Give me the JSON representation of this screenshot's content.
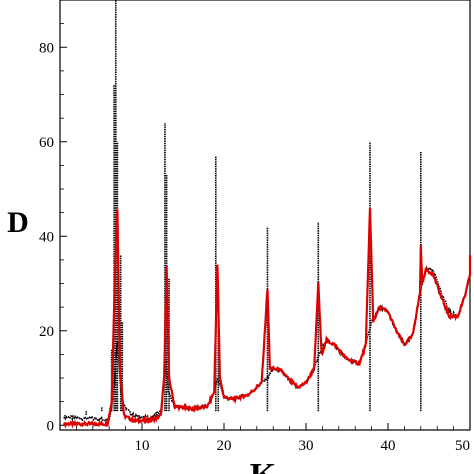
{
  "chart_data": {
    "type": "line",
    "title": "",
    "xlabel": "K",
    "ylabel": "D",
    "xlim": [
      0,
      50
    ],
    "ylim": [
      -1,
      90
    ],
    "xticks": [
      10,
      20,
      30,
      40,
      50
    ],
    "yticks": [
      0,
      20,
      40,
      60,
      80
    ],
    "grid": false,
    "legend": "none",
    "series": [
      {
        "color": "#000000",
        "style": "dotted",
        "baseline": [
          [
            0.5,
            1.8
          ],
          [
            2,
            1.5
          ],
          [
            4,
            1.4
          ],
          [
            6,
            1.2
          ],
          [
            6.5,
            6
          ],
          [
            7,
            18
          ],
          [
            7.4,
            8
          ],
          [
            7.8,
            4
          ],
          [
            9,
            2
          ],
          [
            11,
            1.5
          ],
          [
            12.3,
            3
          ],
          [
            12.6,
            8
          ],
          [
            13,
            14
          ],
          [
            13.2,
            7
          ],
          [
            14,
            4
          ],
          [
            16,
            3.5
          ],
          [
            18,
            4
          ],
          [
            18.8,
            7
          ],
          [
            19.2,
            10
          ],
          [
            20,
            6
          ],
          [
            21,
            5.5
          ],
          [
            23,
            6.5
          ],
          [
            24.6,
            9
          ],
          [
            25.3,
            10
          ],
          [
            26,
            12
          ],
          [
            27,
            11.5
          ],
          [
            28,
            9.5
          ],
          [
            29,
            8
          ],
          [
            30,
            9
          ],
          [
            31,
            12
          ],
          [
            31.6,
            15
          ],
          [
            32.5,
            18
          ],
          [
            33.5,
            17
          ],
          [
            35,
            14
          ],
          [
            36.5,
            13
          ],
          [
            37.3,
            17
          ],
          [
            38,
            22
          ],
          [
            39,
            25
          ],
          [
            40,
            24
          ],
          [
            41,
            20
          ],
          [
            42,
            17
          ],
          [
            43,
            19
          ],
          [
            43.9,
            28
          ],
          [
            44.6,
            33
          ],
          [
            45.5,
            33
          ],
          [
            46.5,
            28
          ],
          [
            47.5,
            24
          ],
          [
            48.5,
            23
          ],
          [
            49.5,
            28
          ],
          [
            50.5,
            36
          ]
        ],
        "spikes": [
          [
            2.3,
            3
          ],
          [
            3.2,
            2.2
          ],
          [
            5.1,
            3.8
          ],
          [
            6.3,
            16
          ],
          [
            6.6,
            72
          ],
          [
            6.8,
            90
          ],
          [
            7,
            60
          ],
          [
            7.4,
            36
          ],
          [
            7.6,
            22
          ],
          [
            12.8,
            64
          ],
          [
            13,
            53
          ],
          [
            13.3,
            31
          ],
          [
            19,
            57
          ],
          [
            19.3,
            25
          ],
          [
            25.3,
            42
          ],
          [
            31.5,
            43
          ],
          [
            37.8,
            60
          ],
          [
            44,
            58
          ]
        ]
      },
      {
        "color": "#dd0000",
        "style": "solid",
        "baseline": [
          [
            0.5,
            0.3
          ],
          [
            2,
            0.3
          ],
          [
            4,
            0.3
          ],
          [
            5.8,
            0.3
          ],
          [
            6.3,
            5
          ],
          [
            6.7,
            32
          ],
          [
            7,
            46
          ],
          [
            7.3,
            12
          ],
          [
            7.8,
            2
          ],
          [
            9,
            1
          ],
          [
            11,
            1
          ],
          [
            12.3,
            2
          ],
          [
            12.7,
            10
          ],
          [
            13,
            34
          ],
          [
            13.3,
            10
          ],
          [
            14,
            4
          ],
          [
            16,
            3.5
          ],
          [
            18,
            4
          ],
          [
            18.8,
            7
          ],
          [
            19.2,
            34
          ],
          [
            19.5,
            10
          ],
          [
            20,
            6
          ],
          [
            21,
            5.5
          ],
          [
            23,
            6.5
          ],
          [
            24.6,
            9
          ],
          [
            25.3,
            29
          ],
          [
            25.6,
            12
          ],
          [
            26,
            12
          ],
          [
            27,
            11.5
          ],
          [
            28,
            9.5
          ],
          [
            29,
            8
          ],
          [
            30,
            9
          ],
          [
            31,
            12
          ],
          [
            31.5,
            30
          ],
          [
            31.9,
            15
          ],
          [
            32.5,
            18
          ],
          [
            33.5,
            17
          ],
          [
            35,
            14
          ],
          [
            36.5,
            13
          ],
          [
            37.3,
            17
          ],
          [
            37.8,
            46
          ],
          [
            38.2,
            22
          ],
          [
            39,
            25
          ],
          [
            40,
            24
          ],
          [
            41,
            20
          ],
          [
            42,
            17
          ],
          [
            43,
            19
          ],
          [
            43.9,
            28
          ],
          [
            44,
            38
          ],
          [
            44.2,
            30
          ],
          [
            44.6,
            33
          ],
          [
            45.5,
            32
          ],
          [
            46.5,
            27
          ],
          [
            47.5,
            23
          ],
          [
            48.5,
            23
          ],
          [
            49.5,
            28
          ],
          [
            50.5,
            36
          ]
        ]
      }
    ]
  }
}
